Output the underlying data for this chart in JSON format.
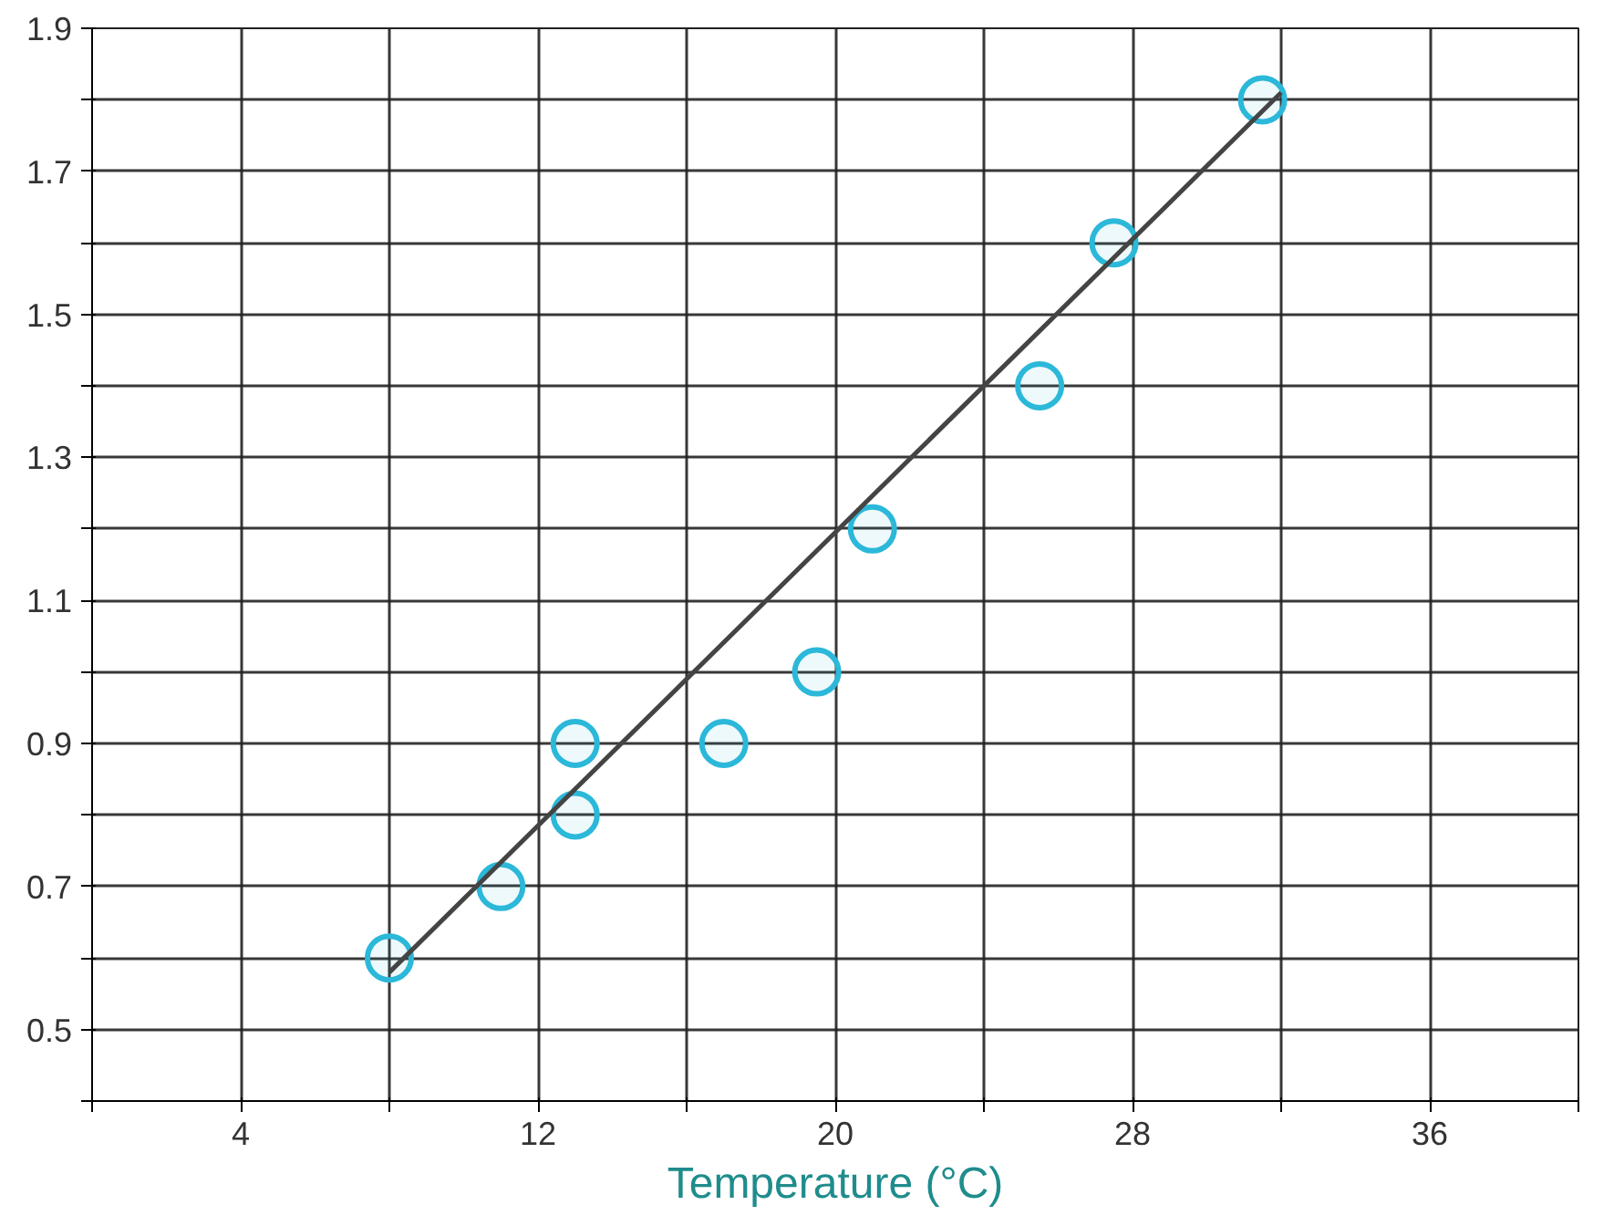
{
  "chart_data": {
    "type": "scatter",
    "xlabel": "Temperature (°C)",
    "series": [
      {
        "color": "#2bb8d9",
        "marker": "circle",
        "x": [
          8,
          11,
          13,
          13,
          17,
          19.5,
          21,
          25.5,
          27.5,
          31.5
        ],
        "values": [
          0.6,
          0.7,
          0.8,
          0.9,
          0.9,
          1.0,
          1.2,
          1.4,
          1.6,
          1.8
        ]
      },
      {
        "type": "line",
        "color": "#444444",
        "x": [
          8,
          32
        ],
        "values": [
          0.58,
          1.81
        ]
      }
    ],
    "xlim": [
      0,
      40
    ],
    "xticks": [
      {
        "value": 0,
        "label": null
      },
      4,
      {
        "value": 8,
        "label": null
      },
      12,
      {
        "value": 16,
        "label": null
      },
      20,
      {
        "value": 24,
        "label": null
      },
      28,
      {
        "value": 32,
        "label": null
      },
      36,
      {
        "value": 40,
        "label": null
      }
    ],
    "ylim": [
      0.4,
      1.9
    ],
    "yticks": [
      {
        "value": 0.4,
        "label": null
      },
      0.5,
      {
        "value": 0.6,
        "label": null
      },
      0.7,
      {
        "value": 0.8,
        "label": null
      },
      0.9,
      {
        "value": 1.0,
        "label": null
      },
      1.1,
      {
        "value": 1.2,
        "label": null
      },
      1.3,
      {
        "value": 1.4,
        "label": null
      },
      1.5,
      {
        "value": 1.6,
        "label": null
      },
      1.7,
      {
        "value": 1.8,
        "label": null
      },
      1.9
    ],
    "grid": true
  }
}
